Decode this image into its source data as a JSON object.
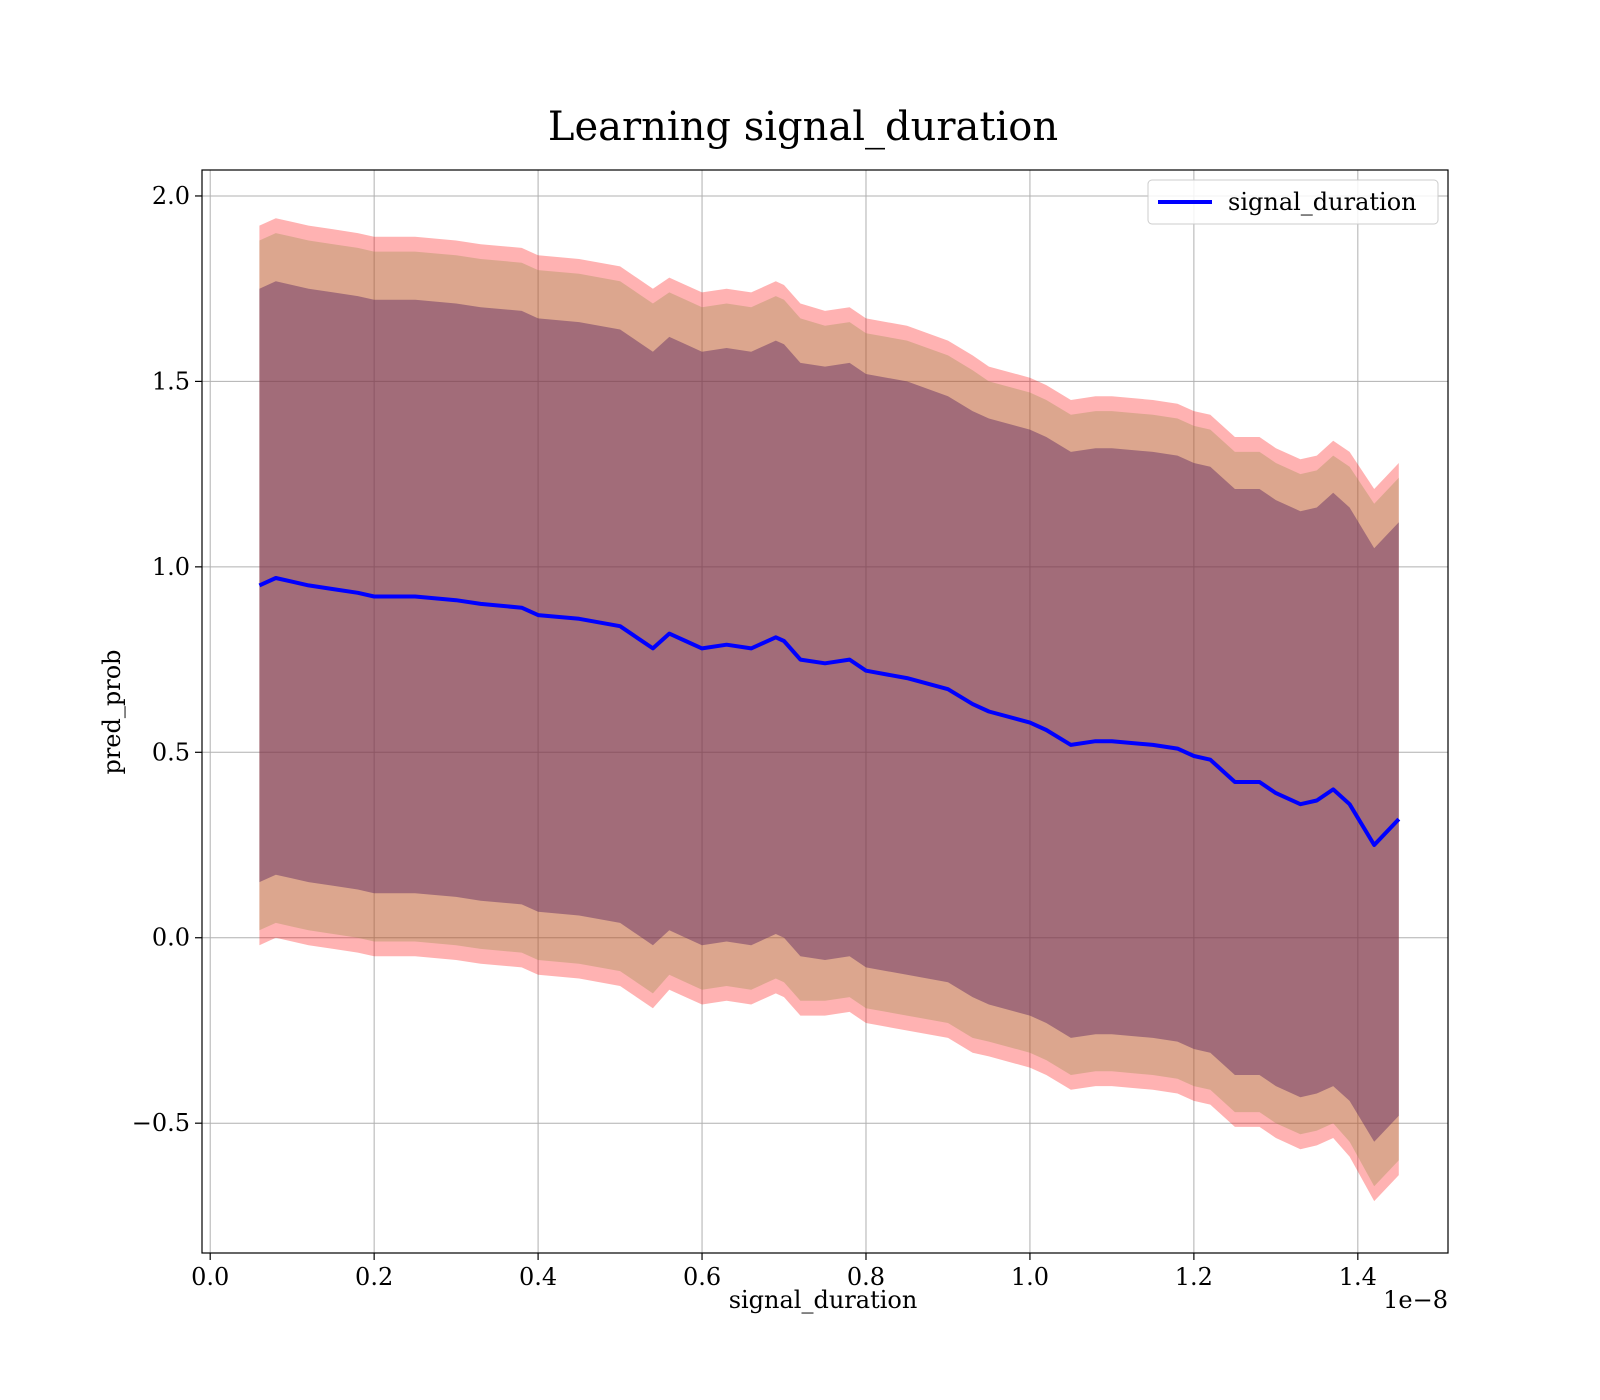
{
  "chart_data": {
    "type": "line",
    "title": "Learning signal_duration",
    "xlabel": "signal_duration",
    "ylabel": "pred_prob",
    "x_offset_text": "1e−8",
    "xlim": [
      -0.01,
      1.51
    ],
    "ylim": [
      -0.85,
      2.07
    ],
    "x_ticks": [
      0.0,
      0.2,
      0.4,
      0.6,
      0.8,
      1.0,
      1.2,
      1.4
    ],
    "x_tick_labels": [
      "0.0",
      "0.2",
      "0.4",
      "0.6",
      "0.8",
      "1.0",
      "1.2",
      "1.4"
    ],
    "y_ticks": [
      -0.5,
      0.0,
      0.5,
      1.0,
      1.5,
      2.0
    ],
    "y_tick_labels": [
      "−0.5",
      "0.0",
      "0.5",
      "1.0",
      "1.5",
      "2.0"
    ],
    "grid": true,
    "legend": {
      "position": "top-right",
      "entries": [
        "signal_duration"
      ]
    },
    "colors": {
      "line": "#0000ff",
      "band_outer": "#ff0000",
      "band_mid": "#8b8b3a",
      "band_inner": "#5a2560"
    },
    "x": [
      0.06,
      0.08,
      0.1,
      0.12,
      0.15,
      0.18,
      0.2,
      0.25,
      0.3,
      0.33,
      0.38,
      0.4,
      0.45,
      0.5,
      0.54,
      0.56,
      0.58,
      0.6,
      0.63,
      0.66,
      0.69,
      0.7,
      0.72,
      0.75,
      0.78,
      0.8,
      0.85,
      0.9,
      0.93,
      0.95,
      1.0,
      1.02,
      1.05,
      1.08,
      1.1,
      1.15,
      1.18,
      1.2,
      1.22,
      1.25,
      1.28,
      1.3,
      1.33,
      1.35,
      1.37,
      1.39,
      1.42,
      1.45
    ],
    "series": [
      {
        "name": "signal_duration",
        "values": [
          0.95,
          0.97,
          0.96,
          0.95,
          0.94,
          0.93,
          0.92,
          0.92,
          0.91,
          0.9,
          0.89,
          0.87,
          0.86,
          0.84,
          0.78,
          0.82,
          0.8,
          0.78,
          0.79,
          0.78,
          0.81,
          0.8,
          0.75,
          0.74,
          0.75,
          0.72,
          0.7,
          0.67,
          0.63,
          0.61,
          0.58,
          0.56,
          0.52,
          0.53,
          0.53,
          0.52,
          0.51,
          0.49,
          0.48,
          0.42,
          0.42,
          0.39,
          0.36,
          0.37,
          0.4,
          0.36,
          0.25,
          0.32
        ]
      }
    ],
    "bands": [
      {
        "label": "",
        "color": "#ff0000",
        "opacity": 0.3,
        "spread": [
          0.97,
          0.97,
          0.97,
          0.97,
          0.97,
          0.97,
          0.97,
          0.97,
          0.97,
          0.97,
          0.97,
          0.97,
          0.97,
          0.97,
          0.97,
          0.96,
          0.96,
          0.96,
          0.96,
          0.96,
          0.96,
          0.96,
          0.96,
          0.95,
          0.95,
          0.95,
          0.95,
          0.94,
          0.94,
          0.93,
          0.93,
          0.93,
          0.93,
          0.93,
          0.93,
          0.93,
          0.93,
          0.93,
          0.93,
          0.93,
          0.93,
          0.93,
          0.93,
          0.93,
          0.94,
          0.95,
          0.96,
          0.96
        ]
      },
      {
        "label": "",
        "color": "#8b8b3a",
        "opacity": 0.3,
        "spread": [
          0.93,
          0.93,
          0.93,
          0.93,
          0.93,
          0.93,
          0.93,
          0.93,
          0.93,
          0.93,
          0.93,
          0.93,
          0.93,
          0.93,
          0.93,
          0.92,
          0.92,
          0.92,
          0.92,
          0.92,
          0.92,
          0.92,
          0.92,
          0.91,
          0.91,
          0.91,
          0.91,
          0.9,
          0.9,
          0.89,
          0.89,
          0.89,
          0.89,
          0.89,
          0.89,
          0.89,
          0.89,
          0.89,
          0.89,
          0.89,
          0.89,
          0.89,
          0.89,
          0.89,
          0.9,
          0.91,
          0.92,
          0.92
        ]
      },
      {
        "label": "",
        "color": "#5a2560",
        "opacity": 0.45,
        "spread": [
          0.8,
          0.8,
          0.8,
          0.8,
          0.8,
          0.8,
          0.8,
          0.8,
          0.8,
          0.8,
          0.8,
          0.8,
          0.8,
          0.8,
          0.8,
          0.8,
          0.8,
          0.8,
          0.8,
          0.8,
          0.8,
          0.8,
          0.8,
          0.8,
          0.8,
          0.8,
          0.8,
          0.79,
          0.79,
          0.79,
          0.79,
          0.79,
          0.79,
          0.79,
          0.79,
          0.79,
          0.79,
          0.79,
          0.79,
          0.79,
          0.79,
          0.79,
          0.79,
          0.79,
          0.8,
          0.8,
          0.8,
          0.8
        ]
      }
    ]
  }
}
